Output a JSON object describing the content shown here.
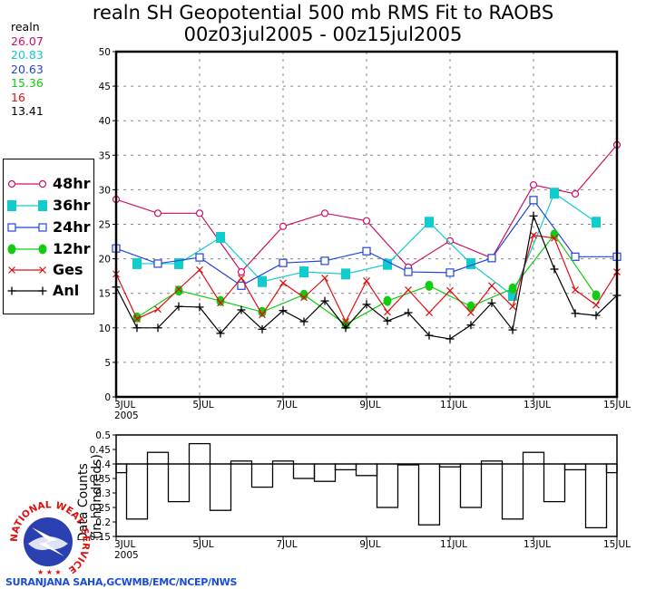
{
  "title": {
    "line1": "realn SH Geopotential 500 mb RMS Fit to RAOBS",
    "line2": "00z03jul2005 - 00z15jul2005"
  },
  "stats": {
    "label": "realn",
    "values": [
      {
        "series": "48hr",
        "value": "26.07",
        "color": "#cc1166"
      },
      {
        "series": "36hr",
        "value": "20.83",
        "color": "#11cccc"
      },
      {
        "series": "24hr",
        "value": "20.63",
        "color": "#2244dd"
      },
      {
        "series": "12hr",
        "value": "15.36",
        "color": "#11cc11"
      },
      {
        "series": "Ges",
        "value": "16",
        "color": "#dd1111"
      },
      {
        "series": "Anl",
        "value": "13.41",
        "color": "#000000"
      }
    ]
  },
  "legend": [
    {
      "label": "48hr",
      "color": "#cc1166",
      "marker": "open-circle"
    },
    {
      "label": "36hr",
      "color": "#11cccc",
      "marker": "filled-square"
    },
    {
      "label": "24hr",
      "color": "#2244dd",
      "marker": "open-square"
    },
    {
      "label": "12hr",
      "color": "#11cc11",
      "marker": "filled-circle"
    },
    {
      "label": "Ges",
      "color": "#dd1111",
      "marker": "x"
    },
    {
      "label": "Anl",
      "color": "#000000",
      "marker": "plus"
    }
  ],
  "credit": "SURANJANA SAHA,GCWMB/EMC/NCEP/NWS",
  "logo": {
    "top_text": "NATIONAL WEATHER",
    "side_text": "SERVICE"
  },
  "chart_data": [
    {
      "type": "line",
      "title": "realn SH Geopotential 500 mb RMS Fit to RAOBS",
      "subtitle": "00z03jul2005 - 00z15jul2005",
      "xlabel": "",
      "ylabel": "",
      "x_unit": "days since 00z03jul2005",
      "xlim": [
        0,
        12
      ],
      "ylim": [
        0,
        50
      ],
      "yticks": [
        0,
        5,
        10,
        15,
        20,
        25,
        30,
        35,
        40,
        45,
        50
      ],
      "xticks": [
        {
          "x": 0,
          "label": "3JUL",
          "sublabel": "2005"
        },
        {
          "x": 2,
          "label": "5JUL"
        },
        {
          "x": 4,
          "label": "7JUL"
        },
        {
          "x": 6,
          "label": "9JUL"
        },
        {
          "x": 8,
          "label": "11JUL"
        },
        {
          "x": 10,
          "label": "13JUL"
        },
        {
          "x": 12,
          "label": "15JUL"
        }
      ],
      "grid": true,
      "legend_position": "left",
      "series": [
        {
          "name": "48hr",
          "color": "#cc1166",
          "marker": "open-circle",
          "x": [
            0,
            1,
            2,
            3,
            4,
            5,
            6,
            7,
            8,
            9,
            10,
            11,
            12
          ],
          "values": [
            28.6,
            26.6,
            26.6,
            18.1,
            24.7,
            26.6,
            25.5,
            18.8,
            22.6,
            20.1,
            30.7,
            29.4,
            36.5
          ]
        },
        {
          "name": "36hr",
          "color": "#11cccc",
          "marker": "filled-square",
          "x": [
            0.5,
            1.5,
            2.5,
            3.5,
            4.5,
            5.5,
            6.5,
            7.5,
            8.5,
            9.5,
            10.5,
            11.5
          ],
          "values": [
            19.3,
            19.3,
            23.1,
            16.7,
            18.1,
            17.8,
            19.2,
            25.3,
            19.3,
            14.7,
            29.5,
            25.3
          ]
        },
        {
          "name": "24hr",
          "color": "#2244dd",
          "marker": "open-square",
          "x": [
            0,
            1,
            2,
            3,
            4,
            5,
            6,
            7,
            8,
            9,
            10,
            11,
            12
          ],
          "values": [
            21.5,
            19.3,
            20.2,
            16.1,
            19.4,
            19.7,
            21.1,
            18.1,
            18.0,
            20.1,
            28.5,
            20.3,
            20.3
          ]
        },
        {
          "name": "12hr",
          "color": "#11cc11",
          "marker": "filled-circle",
          "x": [
            0.5,
            1.5,
            2.5,
            3.5,
            4.5,
            5.5,
            6.5,
            7.5,
            8.5,
            9.5,
            10.5,
            11.5
          ],
          "values": [
            11.5,
            15.4,
            13.9,
            12.3,
            14.8,
            10.5,
            13.9,
            16.1,
            13.1,
            15.7,
            23.5,
            14.7
          ]
        },
        {
          "name": "Ges",
          "color": "#dd1111",
          "marker": "x",
          "x": [
            0,
            0.5,
            1,
            1.5,
            2,
            2.5,
            3,
            3.5,
            4,
            4.5,
            5,
            5.5,
            6,
            6.5,
            7,
            7.5,
            8,
            8.5,
            9,
            9.5,
            10,
            10.5,
            11,
            11.5,
            12
          ],
          "values": [
            17.8,
            11.3,
            12.7,
            15.6,
            18.4,
            13.6,
            17.2,
            11.9,
            16.5,
            14.4,
            17.2,
            10.9,
            16.8,
            12.3,
            15.5,
            12.2,
            15.4,
            12.2,
            16.1,
            13.1,
            23.4,
            23.0,
            15.5,
            13.3,
            18.1
          ]
        },
        {
          "name": "Anl",
          "color": "#000000",
          "marker": "plus",
          "x": [
            0,
            0.5,
            1,
            1.5,
            2,
            2.5,
            3,
            3.5,
            4,
            4.5,
            5,
            5.5,
            6,
            6.5,
            7,
            7.5,
            8,
            8.5,
            9,
            9.5,
            10,
            10.5,
            11,
            11.5,
            12
          ],
          "values": [
            15.9,
            10.0,
            10.0,
            13.1,
            13.0,
            9.2,
            12.6,
            9.8,
            12.5,
            10.9,
            13.9,
            10.0,
            13.4,
            11.0,
            12.2,
            8.9,
            8.4,
            10.4,
            13.6,
            9.7,
            26.2,
            18.5,
            12.1,
            11.8,
            14.7
          ]
        }
      ]
    },
    {
      "type": "bar",
      "title": "",
      "xlabel": "",
      "ylabel": "Data Counts (in hundreds)",
      "ylabel_line1": "Data Counts",
      "ylabel_line2": "(in hundreds)",
      "ylim": [
        0.15,
        0.5
      ],
      "yticks": [
        0.15,
        0.2,
        0.25,
        0.3,
        0.35,
        0.4,
        0.45,
        0.5
      ],
      "ytick_labels": [
        "0.15",
        "0.2",
        "0.25",
        "0.3",
        "0.35",
        "0.4",
        "0.45",
        "0.5"
      ],
      "reference_line": 0.4,
      "xlim": [
        0,
        12
      ],
      "xticks": [
        {
          "x": 0,
          "label": "3JUL",
          "sublabel": "2005"
        },
        {
          "x": 2,
          "label": "5JUL"
        },
        {
          "x": 4,
          "label": "7JUL"
        },
        {
          "x": 6,
          "label": "9JUL"
        },
        {
          "x": 8,
          "label": "11JUL"
        },
        {
          "x": 10,
          "label": "13JUL"
        },
        {
          "x": 12,
          "label": "15JUL"
        }
      ],
      "grid": false,
      "x": [
        0,
        0.5,
        1,
        1.5,
        2,
        2.5,
        3,
        3.5,
        4,
        4.5,
        5,
        5.5,
        6,
        6.5,
        7,
        7.5,
        8,
        8.5,
        9,
        9.5,
        10,
        10.5,
        11,
        11.5,
        12
      ],
      "values": [
        0.37,
        0.21,
        0.44,
        0.27,
        0.47,
        0.24,
        0.41,
        0.32,
        0.41,
        0.35,
        0.34,
        0.38,
        0.36,
        0.25,
        0.4,
        0.19,
        0.39,
        0.25,
        0.41,
        0.21,
        0.44,
        0.27,
        0.38,
        0.18,
        0.37
      ]
    }
  ]
}
